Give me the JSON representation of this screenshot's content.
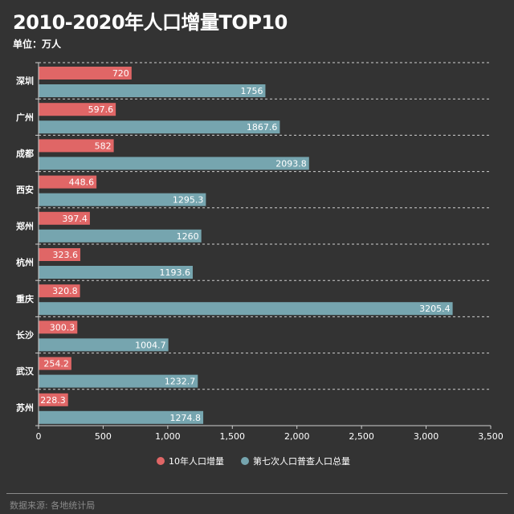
{
  "title": "2010-2020年人口增量TOP10",
  "subtitle": "单位：万人",
  "footer": "数据来源: 各地统计局",
  "colors": {
    "series1": "#e06666",
    "series2": "#76a5af",
    "background": "#333333"
  },
  "chart_data": {
    "type": "bar",
    "orientation": "horizontal",
    "categories": [
      "深圳",
      "广州",
      "成都",
      "西安",
      "郑州",
      "杭州",
      "重庆",
      "长沙",
      "武汉",
      "苏州"
    ],
    "series": [
      {
        "name": "10年人口增量",
        "values": [
          720,
          597.6,
          582,
          448.6,
          397.4,
          323.6,
          320.8,
          300.3,
          254.2,
          228.3
        ]
      },
      {
        "name": "第七次人口普查人口总量",
        "values": [
          1756,
          1867.6,
          2093.8,
          1295.3,
          1260,
          1193.6,
          3205.4,
          1004.7,
          1232.7,
          1274.8
        ]
      }
    ],
    "xlim": [
      0,
      3500
    ],
    "xticks": [
      "0",
      "500",
      "1,000",
      "1,500",
      "2,000",
      "2,500",
      "3,000",
      "3,500"
    ],
    "grid": "horizontal-dashed",
    "legend": "bottom-center"
  }
}
